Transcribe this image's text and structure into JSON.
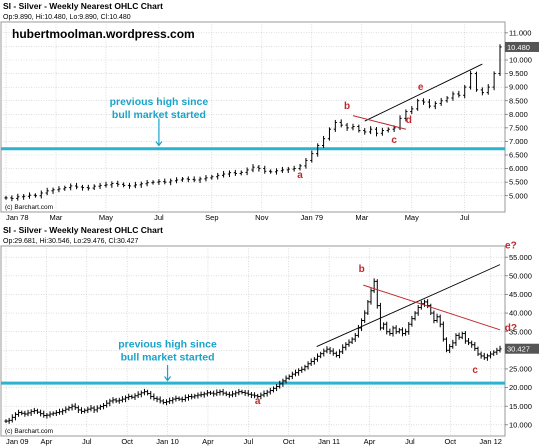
{
  "colors": {
    "price": "#000000",
    "grid": "#c8c8c8",
    "level": "#2bb3cf",
    "annotation": "#1aa3c9",
    "label": "#c0282d",
    "downtrend": "#c0282d",
    "uptrend": "#000000",
    "last_box": "#555555"
  },
  "chart_data": [
    {
      "type": "ohlc",
      "title": "SI - Silver - Weekly Nearest OHLC Chart",
      "ohlc_header": "Op:9.890, Hi:10.480, Lo:9.890, Cl:10.480",
      "site": "hubertmoolman.wordpress.com",
      "footer": "(c) Barchart.com",
      "x_axis": {
        "range": [
          0,
          84
        ],
        "ticks": [
          {
            "x": 0,
            "label": "Jan 78"
          },
          {
            "x": 8.5,
            "label": "Mar"
          },
          {
            "x": 17,
            "label": "May"
          },
          {
            "x": 26,
            "label": "Jul"
          },
          {
            "x": 35,
            "label": "Sep"
          },
          {
            "x": 43.5,
            "label": "Nov"
          },
          {
            "x": 52,
            "label": "Jan 79"
          },
          {
            "x": 60.5,
            "label": "Mar"
          },
          {
            "x": 69,
            "label": "May"
          },
          {
            "x": 78,
            "label": "Jul"
          }
        ]
      },
      "y_axis": {
        "range": [
          4.4,
          11.4
        ],
        "ticks": [
          5.0,
          5.5,
          6.0,
          6.5,
          7.0,
          7.5,
          8.0,
          8.5,
          9.0,
          9.5,
          10.0,
          10.5,
          11.0
        ],
        "tick_labels": [
          "5.000",
          "5.500",
          "6.000",
          "6.500",
          "7.000",
          "7.500",
          "8.000",
          "8.500",
          "9.000",
          "9.500",
          "10.000",
          "10.500",
          "11.000"
        ]
      },
      "grid": true,
      "last_price": 10.48,
      "last_price_label": "10.480",
      "closes": [
        4.92,
        4.9,
        4.96,
        4.98,
        5.02,
        5.0,
        5.1,
        5.18,
        5.22,
        5.25,
        5.3,
        5.36,
        5.32,
        5.3,
        5.28,
        5.35,
        5.38,
        5.4,
        5.45,
        5.42,
        5.38,
        5.36,
        5.4,
        5.44,
        5.48,
        5.5,
        5.52,
        5.5,
        5.55,
        5.58,
        5.62,
        5.6,
        5.58,
        5.62,
        5.66,
        5.7,
        5.75,
        5.8,
        5.85,
        5.82,
        5.86,
        5.95,
        6.05,
        6.0,
        5.9,
        5.88,
        5.92,
        5.95,
        5.98,
        6.0,
        6.1,
        6.3,
        6.55,
        6.85,
        7.1,
        7.45,
        7.7,
        7.6,
        7.5,
        7.55,
        7.4,
        7.35,
        7.45,
        7.3,
        7.4,
        7.45,
        7.5,
        7.85,
        8.1,
        8.2,
        8.5,
        8.45,
        8.3,
        8.4,
        8.5,
        8.6,
        8.75,
        8.7,
        9.0,
        9.5,
        8.9,
        8.8,
        9.0,
        9.5,
        10.48
      ],
      "level": {
        "value": 6.73,
        "x_range": [
          0,
          84
        ]
      },
      "trendlines": [
        {
          "name": "uptrend",
          "points": [
            [
              61,
              7.75
            ],
            [
              81,
              9.85
            ]
          ]
        },
        {
          "name": "downtrend",
          "points": [
            [
              59,
              7.95
            ],
            [
              68,
              7.45
            ]
          ]
        }
      ],
      "labels": [
        {
          "text": "a",
          "x": 50,
          "y": 5.65
        },
        {
          "text": "b",
          "x": 58,
          "y": 8.2
        },
        {
          "text": "c",
          "x": 66,
          "y": 6.95
        },
        {
          "text": "d",
          "x": 68.5,
          "y": 7.68
        },
        {
          "text": "e",
          "x": 70.5,
          "y": 8.9
        }
      ],
      "annotation": {
        "lines": [
          "previous high since",
          "bull market started"
        ],
        "x": 26,
        "y": 8.35,
        "arrow_from": 7.7,
        "arrow_to": 6.85
      }
    },
    {
      "type": "ohlc",
      "title": "SI - Silver - Weekly Nearest OHLC Chart",
      "ohlc_header": "Op:29.681, Hi:30.546, Lo:29.476, Cl:30.427",
      "footer": "(c) Barchart.com",
      "x_axis": {
        "range": [
          0,
          159
        ],
        "ticks": [
          {
            "x": 0,
            "label": "Jan 09"
          },
          {
            "x": 13,
            "label": "Apr"
          },
          {
            "x": 26,
            "label": "Jul"
          },
          {
            "x": 39,
            "label": "Oct"
          },
          {
            "x": 52,
            "label": "Jan 10"
          },
          {
            "x": 65,
            "label": "Apr"
          },
          {
            "x": 78,
            "label": "Jul"
          },
          {
            "x": 91,
            "label": "Oct"
          },
          {
            "x": 104,
            "label": "Jan 11"
          },
          {
            "x": 117,
            "label": "Apr"
          },
          {
            "x": 130,
            "label": "Jul"
          },
          {
            "x": 143,
            "label": "Oct"
          },
          {
            "x": 156,
            "label": "Jan 12"
          }
        ]
      },
      "y_axis": {
        "range": [
          7,
          58
        ],
        "ticks": [
          10,
          15,
          20,
          25,
          30,
          35,
          40,
          45,
          50,
          55
        ],
        "tick_labels": [
          "10.000",
          "15.000",
          "20.000",
          "25.000",
          "30.000",
          "35.000",
          "40.000",
          "45.000",
          "50.000",
          "55.000"
        ]
      },
      "grid": true,
      "last_price": 30.427,
      "last_price_label": "30.427",
      "closes": [
        11.0,
        11.2,
        12.0,
        12.8,
        13.3,
        13.1,
        12.9,
        13.2,
        13.6,
        13.8,
        13.4,
        13.0,
        12.5,
        12.6,
        12.9,
        13.1,
        13.3,
        13.5,
        13.8,
        14.2,
        14.6,
        15.0,
        14.6,
        14.0,
        13.6,
        13.9,
        14.2,
        14.5,
        14.0,
        14.5,
        14.9,
        15.2,
        15.8,
        16.4,
        16.7,
        16.4,
        16.6,
        16.9,
        17.3,
        17.6,
        17.4,
        17.8,
        18.2,
        18.6,
        18.9,
        18.4,
        17.6,
        17.1,
        16.9,
        16.4,
        16.0,
        16.2,
        16.5,
        16.9,
        17.1,
        16.9,
        16.8,
        17.3,
        17.6,
        17.5,
        17.8,
        18.0,
        18.1,
        18.3,
        18.6,
        18.5,
        18.3,
        18.7,
        18.9,
        18.5,
        18.2,
        18.0,
        18.3,
        18.6,
        18.9,
        18.7,
        18.5,
        18.2,
        18.0,
        17.8,
        17.6,
        18.0,
        18.4,
        18.8,
        19.2,
        19.8,
        20.3,
        21.0,
        21.8,
        22.5,
        23.0,
        23.6,
        24.0,
        24.6,
        24.9,
        25.6,
        26.4,
        27.0,
        27.6,
        28.4,
        29.1,
        29.8,
        30.3,
        29.8,
        29.2,
        28.6,
        29.6,
        30.8,
        31.6,
        32.2,
        33.0,
        34.0,
        36.0,
        38.0,
        40.0,
        43.0,
        46.0,
        48.5,
        42.0,
        36.0,
        37.0,
        35.0,
        34.5,
        36.0,
        35.0,
        35.5,
        34.5,
        35.0,
        37.0,
        38.5,
        40.0,
        41.5,
        42.5,
        43.0,
        42.0,
        40.0,
        38.0,
        39.0,
        37.0,
        33.0,
        30.0,
        31.0,
        32.0,
        34.0,
        33.5,
        34.5,
        32.5,
        32.0,
        31.5,
        30.5,
        29.0,
        28.5,
        28.0,
        28.5,
        29.0,
        29.5,
        30.0,
        30.4
      ],
      "level": {
        "value": 21.2,
        "x_range": [
          0,
          159
        ]
      },
      "trendlines": [
        {
          "name": "uptrend",
          "points": [
            [
              100,
              31.0
            ],
            [
              159,
              53.0
            ]
          ]
        },
        {
          "name": "downtrend",
          "points": [
            [
              115,
              47.5
            ],
            [
              159,
              35.5
            ]
          ]
        }
      ],
      "labels": [
        {
          "text": "a",
          "x": 81,
          "y": 15.6
        },
        {
          "text": "b",
          "x": 114.5,
          "y": 51.0
        },
        {
          "text": "c",
          "x": 151,
          "y": 23.9
        },
        {
          "text": "d?",
          "x": 162.5,
          "y": 35.2
        },
        {
          "text": "e?",
          "x": 162.5,
          "y": 57.3
        }
      ],
      "annotation": {
        "lines": [
          "previous high since",
          "bull market started"
        ],
        "x": 52,
        "y": 30.8,
        "arrow_from": 25.0,
        "arrow_to": 21.9
      }
    }
  ]
}
